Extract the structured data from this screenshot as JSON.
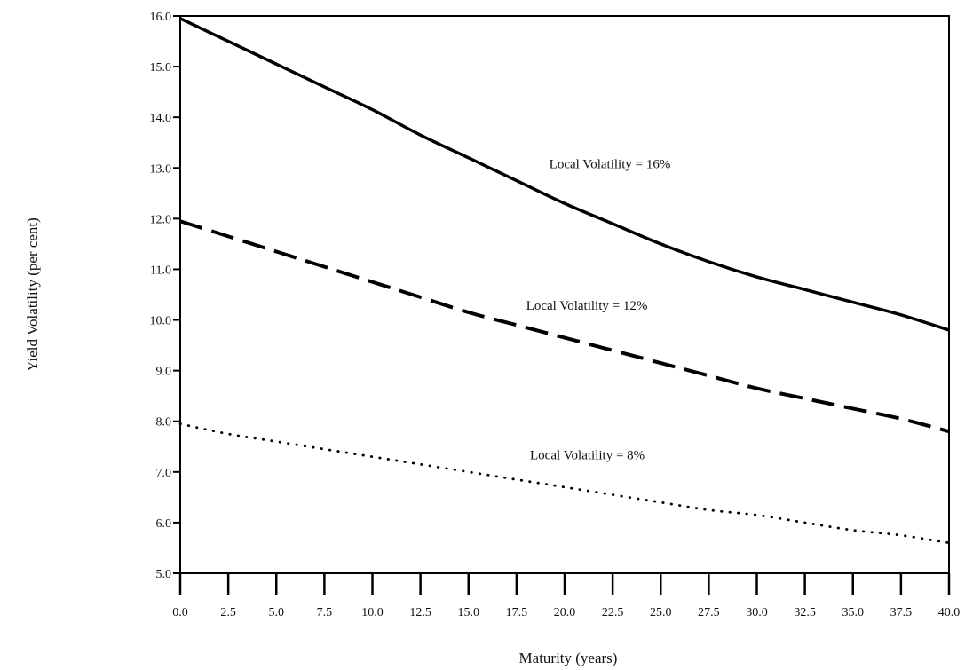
{
  "chart_data": {
    "type": "line",
    "title": "",
    "xlabel": "Maturity (years)",
    "ylabel": "Yield Volatility (per cent)",
    "xlim": [
      0,
      40
    ],
    "ylim": [
      5,
      16
    ],
    "x_ticks": [
      "0.0",
      "2.5",
      "5.0",
      "7.5",
      "10.0",
      "12.5",
      "15.0",
      "17.5",
      "20.0",
      "22.5",
      "25.0",
      "27.5",
      "30.0",
      "32.5",
      "35.0",
      "37.5",
      "40.0"
    ],
    "y_ticks": [
      "5.0",
      "6.0",
      "7.0",
      "8.0",
      "9.0",
      "10.0",
      "11.0",
      "12.0",
      "13.0",
      "14.0",
      "15.0",
      "16.0"
    ],
    "grid": false,
    "legend": "none",
    "x": [
      0,
      2.5,
      5,
      7.5,
      10,
      12.5,
      15,
      17.5,
      20,
      22.5,
      25,
      27.5,
      30,
      32.5,
      35,
      37.5,
      40
    ],
    "series": [
      {
        "name": "Local Volatility = 16%",
        "style": "solid",
        "values": [
          15.95,
          15.5,
          15.05,
          14.6,
          14.15,
          13.65,
          13.2,
          12.75,
          12.3,
          11.9,
          11.5,
          11.15,
          10.85,
          10.6,
          10.35,
          10.1,
          9.8
        ]
      },
      {
        "name": "Local Volatility = 12%",
        "style": "dashed",
        "values": [
          11.95,
          11.65,
          11.35,
          11.05,
          10.75,
          10.45,
          10.15,
          9.9,
          9.65,
          9.4,
          9.15,
          8.9,
          8.65,
          8.45,
          8.25,
          8.05,
          7.8
        ]
      },
      {
        "name": "Local Volatility = 8%",
        "style": "dotted",
        "values": [
          7.95,
          7.75,
          7.6,
          7.45,
          7.3,
          7.15,
          7.0,
          6.85,
          6.7,
          6.55,
          6.4,
          6.25,
          6.15,
          6.0,
          5.85,
          5.75,
          5.6
        ]
      }
    ],
    "annotations": [
      {
        "text": "Local Volatility = 16%",
        "x": 19.2,
        "y": 13.0
      },
      {
        "text": "Local Volatility = 12%",
        "x": 18.0,
        "y": 10.2
      },
      {
        "text": "Local Volatility = 8%",
        "x": 18.2,
        "y": 7.25
      }
    ]
  }
}
